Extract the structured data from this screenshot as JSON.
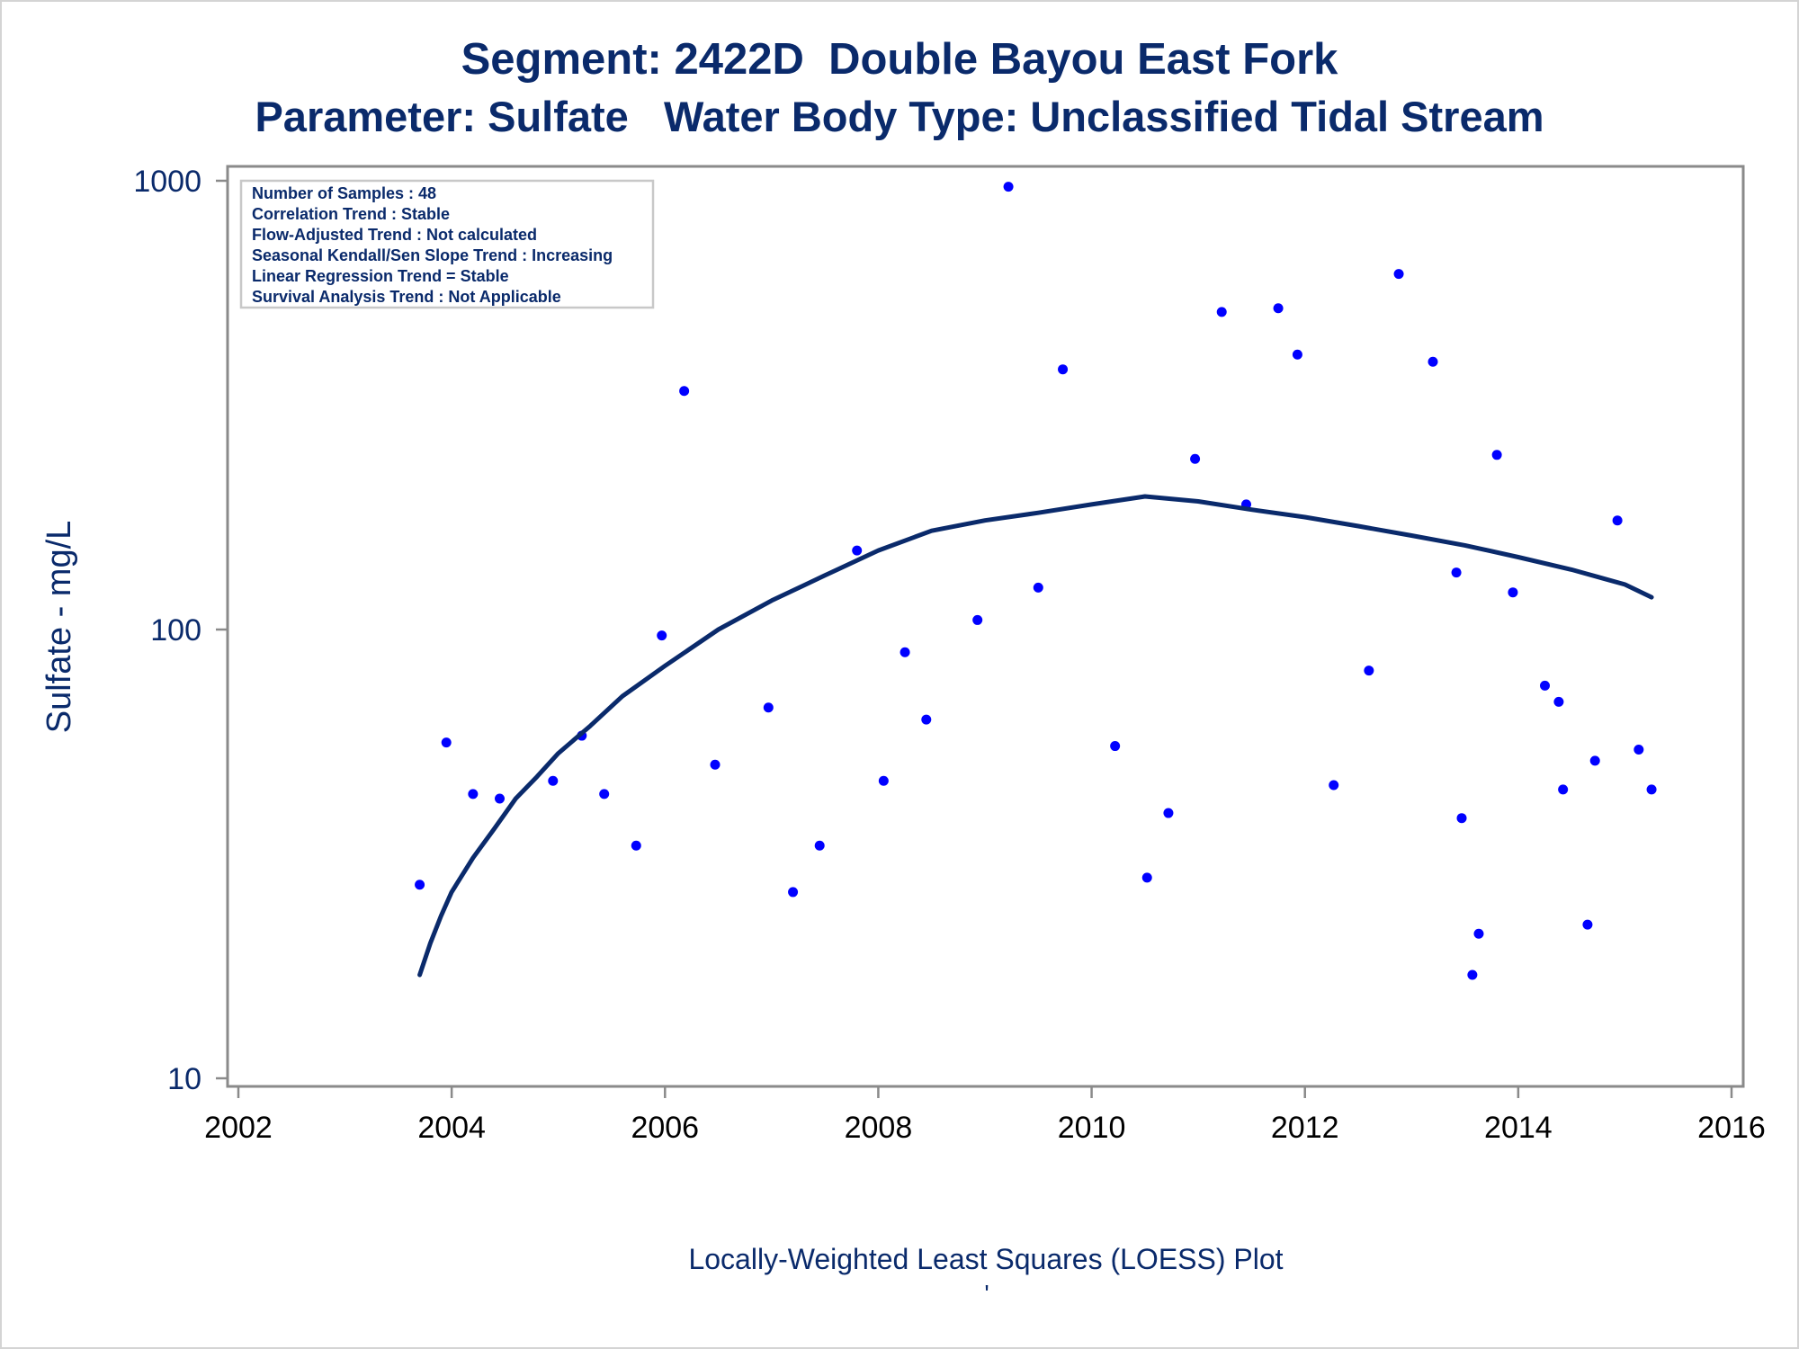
{
  "chart_data": {
    "type": "scatter",
    "title": "Segment: 2422D  Double Bayou East Fork",
    "subtitle": "Parameter: Sulfate   Water Body Type: Unclassified Tidal Stream",
    "ylabel": "Sulfate - mg/L",
    "footnote": "Locally-Weighted Least Squares (LOESS) Plot",
    "footnote_mark": "'",
    "yscale": "log",
    "xlim": [
      2002,
      2016
    ],
    "ylim": [
      10,
      1000
    ],
    "x_ticks": [
      2002,
      2004,
      2006,
      2008,
      2010,
      2012,
      2014,
      2016
    ],
    "x_tick_labels": [
      "2002",
      "2004",
      "2006",
      "2008",
      "2010",
      "2012",
      "2014",
      "2016"
    ],
    "y_ticks": [
      10,
      100,
      1000
    ],
    "y_tick_labels": [
      "10",
      "100",
      "1000"
    ],
    "grid": false,
    "legend": "none",
    "inset_box": {
      "placement": "top-left",
      "lines": [
        "Number of Samples : 48",
        "Correlation Trend : Stable",
        "Flow-Adjusted Trend : Not calculated",
        "Seasonal Kendall/Sen Slope Trend : Increasing",
        "Linear Regression Trend = Stable",
        "Survival Analysis Trend : Not Applicable"
      ]
    },
    "colors": {
      "points": "#0000ff",
      "loess": "#0a2a6b",
      "text": "#0a2a6b"
    },
    "series": [
      {
        "kind": "points",
        "points": [
          {
            "x": 2003.7,
            "y": 27
          },
          {
            "x": 2003.95,
            "y": 56
          },
          {
            "x": 2004.2,
            "y": 43
          },
          {
            "x": 2004.45,
            "y": 42
          },
          {
            "x": 2004.95,
            "y": 46
          },
          {
            "x": 2005.22,
            "y": 58
          },
          {
            "x": 2005.43,
            "y": 43
          },
          {
            "x": 2005.73,
            "y": 33
          },
          {
            "x": 2005.97,
            "y": 97
          },
          {
            "x": 2006.18,
            "y": 340
          },
          {
            "x": 2006.47,
            "y": 50
          },
          {
            "x": 2006.97,
            "y": 67
          },
          {
            "x": 2007.2,
            "y": 26
          },
          {
            "x": 2007.45,
            "y": 33
          },
          {
            "x": 2007.8,
            "y": 150
          },
          {
            "x": 2008.05,
            "y": 46
          },
          {
            "x": 2008.25,
            "y": 89
          },
          {
            "x": 2008.45,
            "y": 63
          },
          {
            "x": 2008.93,
            "y": 105
          },
          {
            "x": 2009.22,
            "y": 970
          },
          {
            "x": 2009.5,
            "y": 124
          },
          {
            "x": 2009.73,
            "y": 380
          },
          {
            "x": 2010.22,
            "y": 55
          },
          {
            "x": 2010.52,
            "y": 28
          },
          {
            "x": 2010.72,
            "y": 39
          },
          {
            "x": 2010.97,
            "y": 240
          },
          {
            "x": 2011.22,
            "y": 510
          },
          {
            "x": 2011.45,
            "y": 190
          },
          {
            "x": 2011.75,
            "y": 520
          },
          {
            "x": 2011.93,
            "y": 410
          },
          {
            "x": 2012.27,
            "y": 45
          },
          {
            "x": 2012.6,
            "y": 81
          },
          {
            "x": 2012.88,
            "y": 620
          },
          {
            "x": 2013.2,
            "y": 395
          },
          {
            "x": 2013.42,
            "y": 134
          },
          {
            "x": 2013.47,
            "y": 38
          },
          {
            "x": 2013.57,
            "y": 17
          },
          {
            "x": 2013.63,
            "y": 21
          },
          {
            "x": 2013.8,
            "y": 245
          },
          {
            "x": 2013.95,
            "y": 121
          },
          {
            "x": 2014.25,
            "y": 75
          },
          {
            "x": 2014.38,
            "y": 69
          },
          {
            "x": 2014.42,
            "y": 44
          },
          {
            "x": 2014.65,
            "y": 22
          },
          {
            "x": 2014.72,
            "y": 51
          },
          {
            "x": 2014.93,
            "y": 175
          },
          {
            "x": 2015.13,
            "y": 54
          },
          {
            "x": 2015.25,
            "y": 44
          }
        ]
      },
      {
        "kind": "loess",
        "points": [
          {
            "x": 2003.7,
            "y": 17
          },
          {
            "x": 2003.8,
            "y": 20
          },
          {
            "x": 2003.9,
            "y": 23
          },
          {
            "x": 2004.0,
            "y": 26
          },
          {
            "x": 2004.2,
            "y": 31
          },
          {
            "x": 2004.4,
            "y": 36
          },
          {
            "x": 2004.6,
            "y": 42
          },
          {
            "x": 2004.8,
            "y": 47
          },
          {
            "x": 2005.0,
            "y": 53
          },
          {
            "x": 2005.3,
            "y": 61
          },
          {
            "x": 2005.6,
            "y": 71
          },
          {
            "x": 2006.0,
            "y": 83
          },
          {
            "x": 2006.5,
            "y": 100
          },
          {
            "x": 2007.0,
            "y": 116
          },
          {
            "x": 2007.5,
            "y": 132
          },
          {
            "x": 2008.0,
            "y": 150
          },
          {
            "x": 2008.5,
            "y": 166
          },
          {
            "x": 2009.0,
            "y": 175
          },
          {
            "x": 2009.5,
            "y": 182
          },
          {
            "x": 2010.0,
            "y": 190
          },
          {
            "x": 2010.5,
            "y": 198
          },
          {
            "x": 2011.0,
            "y": 193
          },
          {
            "x": 2011.5,
            "y": 185
          },
          {
            "x": 2012.0,
            "y": 178
          },
          {
            "x": 2012.5,
            "y": 170
          },
          {
            "x": 2013.0,
            "y": 162
          },
          {
            "x": 2013.5,
            "y": 154
          },
          {
            "x": 2014.0,
            "y": 145
          },
          {
            "x": 2014.5,
            "y": 136
          },
          {
            "x": 2015.0,
            "y": 126
          },
          {
            "x": 2015.25,
            "y": 118
          }
        ]
      }
    ]
  }
}
